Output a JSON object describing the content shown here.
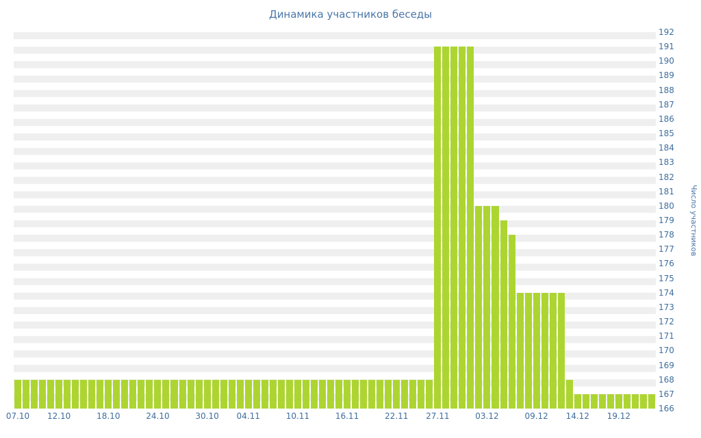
{
  "title": "Динамика участников беседы",
  "chart_data": {
    "type": "bar",
    "title": "Динамика участников беседы",
    "xlabel": "",
    "ylabel": "Число участников",
    "ylim": [
      166,
      192
    ],
    "grid": "horizontal-stripes",
    "legend_position": "none",
    "bar_color": "#add532",
    "stripe_color": "#efefef",
    "axis_text_color": "#3d6d9e",
    "title_color": "#4a76a8",
    "y_ticks": [
      166,
      167,
      168,
      169,
      170,
      171,
      172,
      173,
      174,
      175,
      176,
      177,
      178,
      179,
      180,
      181,
      182,
      183,
      184,
      185,
      186,
      187,
      188,
      189,
      190,
      191,
      192
    ],
    "x_tick_labels": [
      "07.10",
      "12.10",
      "18.10",
      "24.10",
      "30.10",
      "04.11",
      "10.11",
      "16.11",
      "22.11",
      "27.11",
      "03.12",
      "09.12",
      "14.12",
      "19.12"
    ],
    "x_tick_indices": [
      0,
      5,
      11,
      17,
      23,
      28,
      34,
      40,
      46,
      51,
      57,
      63,
      68,
      73
    ],
    "values": [
      168,
      168,
      168,
      168,
      168,
      168,
      168,
      168,
      168,
      168,
      168,
      168,
      168,
      168,
      168,
      168,
      168,
      168,
      168,
      168,
      168,
      168,
      168,
      168,
      168,
      168,
      168,
      168,
      168,
      168,
      168,
      168,
      168,
      168,
      168,
      168,
      168,
      168,
      168,
      168,
      168,
      168,
      168,
      168,
      168,
      168,
      168,
      168,
      168,
      168,
      168,
      191,
      191,
      191,
      191,
      191,
      180,
      180,
      180,
      179,
      178,
      174,
      174,
      174,
      174,
      174,
      174,
      168,
      167,
      167,
      167,
      167,
      167,
      167,
      167,
      167,
      167,
      167
    ]
  }
}
